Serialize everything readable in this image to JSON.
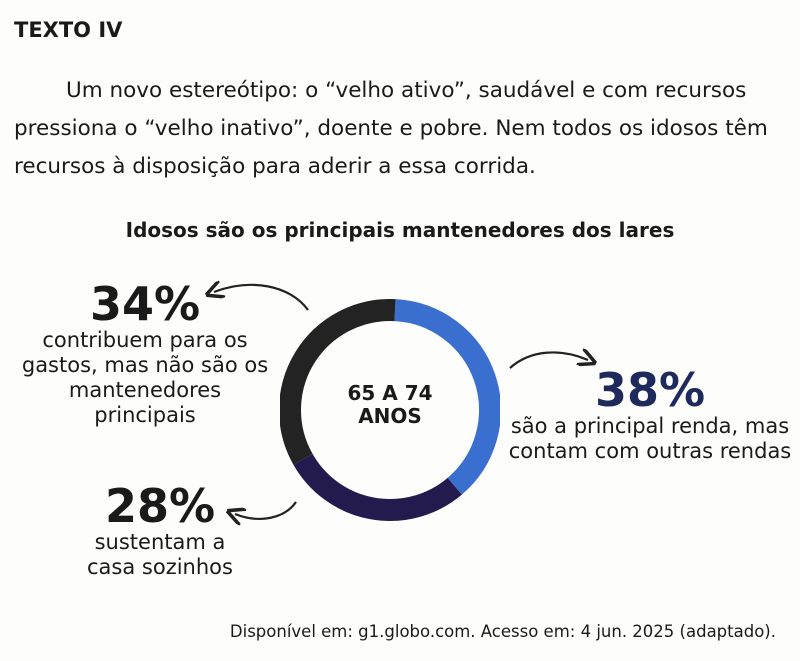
{
  "label": "TEXTO IV",
  "paragraph": "Um novo estereótipo: o “velho ativo”, saudável e com recursos pressiona o “velho inativo”, doente e pobre. Nem todos os idosos têm recursos à disposição para aderir a essa corrida.",
  "chart_data": {
    "type": "pie",
    "title": "Idosos são os principais mantenedores dos lares",
    "center_label": [
      "65 A 74",
      "ANOS"
    ],
    "slices": [
      {
        "value": 38,
        "label": "38%",
        "description": "são a principal renda, mas contam com outras rendas",
        "color": "#3a6fd0"
      },
      {
        "value": 28,
        "label": "28%",
        "description": "sustentam a casa sozinhos",
        "color": "#231b4d"
      },
      {
        "value": 34,
        "label": "34%",
        "description": "contribuem para os gastos, mas não são os mantenedores principais",
        "color": "#232323"
      }
    ]
  },
  "source": "Disponível em: g1.globo.com. Acesso em: 4 jun. 2025 (adaptado)."
}
